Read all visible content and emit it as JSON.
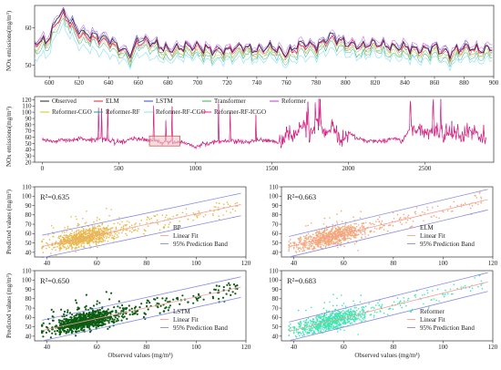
{
  "colors": {
    "Observed": "#222222",
    "ELM": "#e02020",
    "LSTM": "#2a4bd7",
    "Transformer": "#2fb84a",
    "Reformer": "#b43ad6",
    "Reformer-CGO": "#d8c21a",
    "Reformer-RF": "#0aa3a3",
    "Reformer-RF-CGO": "#8fe0ef",
    "Reformer-RF-ICGO": "#ff1493",
    "BP_pts": "#e8b84a",
    "ELM_pts": "#f4a87a",
    "LSTM_pts": "#0b5d12",
    "Reformer_pts": "#3ee6b0",
    "fit": "#f4a0a0",
    "band": "#8a8ae6"
  },
  "chart_data": [
    {
      "type": "line",
      "ylabel": "NOx emissions(mg/m³)",
      "xlim": [
        590,
        900
      ],
      "ylim": [
        47,
        66
      ],
      "xticks": [
        600,
        620,
        640,
        660,
        680,
        700,
        720,
        740,
        760,
        780,
        800,
        820,
        840,
        860,
        880,
        900
      ],
      "yticks": [
        50,
        60
      ],
      "x": [
        590,
        600,
        605,
        610,
        620,
        630,
        640,
        650,
        655,
        660,
        670,
        680,
        690,
        700,
        710,
        720,
        730,
        740,
        750,
        760,
        770,
        780,
        790,
        800,
        810,
        820,
        830,
        840,
        850,
        860,
        870,
        880,
        890,
        900
      ],
      "series": [
        {
          "name": "Observed",
          "values": [
            56,
            57,
            63,
            64,
            59,
            58,
            57,
            54,
            53,
            57,
            56,
            54,
            55,
            55,
            54,
            54,
            55,
            54,
            55,
            53,
            56,
            55,
            58,
            56,
            55,
            56,
            55,
            55,
            54,
            55,
            53,
            55,
            54,
            55
          ]
        },
        {
          "name": "Reformer-RF-ICGO",
          "values": [
            56,
            57,
            62,
            63,
            58,
            57,
            56,
            54,
            53,
            56,
            56,
            54,
            55,
            55,
            54,
            54,
            55,
            54,
            55,
            53,
            55,
            55,
            57,
            56,
            55,
            56,
            55,
            55,
            54,
            55,
            53,
            55,
            54,
            55
          ]
        },
        {
          "name": "Reformer-RF-CGO",
          "values": [
            52,
            53,
            59,
            60,
            55,
            54,
            53,
            51,
            50,
            53,
            52,
            51,
            52,
            52,
            51,
            51,
            52,
            51,
            52,
            50,
            52,
            52,
            54,
            53,
            52,
            53,
            52,
            52,
            51,
            52,
            50,
            52,
            51,
            52
          ]
        }
      ]
    },
    {
      "type": "line",
      "ylabel": "NOx emissions(mg/m³)",
      "xlim": [
        -50,
        2950
      ],
      "ylim": [
        20,
        125
      ],
      "xticks": [
        0,
        500,
        1000,
        1500,
        2000,
        2500
      ],
      "yticks": [
        20,
        30,
        40,
        50,
        60,
        70,
        80,
        90,
        100,
        110,
        120
      ],
      "legend": [
        "Observed",
        "ELM",
        "LSTM",
        "Transformer",
        "Reformer",
        "Reformer-CGO",
        "Reformer-RF",
        "Reformer-RF-CGO",
        "Reformer-RF-ICGO"
      ],
      "x": [
        0,
        100,
        200,
        250,
        300,
        400,
        500,
        600,
        700,
        800,
        900,
        1000,
        1100,
        1200,
        1300,
        1400,
        1500,
        1550,
        1600,
        1650,
        1700,
        1750,
        1800,
        1850,
        1900,
        1950,
        2000,
        2100,
        2200,
        2300,
        2350,
        2400,
        2450,
        2500,
        2600,
        2700,
        2800,
        2900
      ],
      "values": [
        55,
        54,
        56,
        58,
        55,
        57,
        52,
        58,
        55,
        52,
        53,
        45,
        53,
        54,
        52,
        55,
        54,
        52,
        70,
        62,
        80,
        60,
        85,
        65,
        75,
        58,
        66,
        55,
        54,
        58,
        52,
        72,
        78,
        68,
        72,
        62,
        70,
        60
      ],
      "inset_box_x": [
        700,
        900
      ]
    },
    {
      "type": "scatter",
      "model": "BP",
      "r2": "R²=0.635",
      "xlabel": "",
      "ylabel": "Predicted values (mg/m³)",
      "xlim": [
        35,
        120
      ],
      "ylim": [
        35,
        110
      ],
      "xticks": [
        40,
        60,
        80,
        100,
        120
      ],
      "yticks": [
        40,
        50,
        60,
        70,
        80,
        90,
        100,
        110
      ],
      "fit": {
        "slope": 0.56,
        "intercept": 25
      },
      "band_halfwidth": 12,
      "legend": [
        "BP",
        "Linear Fit",
        "95% Prediction Band"
      ]
    },
    {
      "type": "scatter",
      "model": "ELM",
      "r2": "R²=0.663",
      "xlabel": "",
      "ylabel": "",
      "xlim": [
        35,
        120
      ],
      "ylim": [
        35,
        110
      ],
      "xticks": [
        40,
        60,
        80,
        100,
        120
      ],
      "yticks": [
        40,
        50,
        60,
        70,
        80,
        90,
        100,
        110
      ],
      "fit": {
        "slope": 0.63,
        "intercept": 22
      },
      "band_halfwidth": 11,
      "legend": [
        "ELM",
        "Linear Fit",
        "95% Prediction Band"
      ]
    },
    {
      "type": "scatter",
      "model": "LSTM",
      "r2": "R²=0.650",
      "xlabel": "Observed values (mg/m³)",
      "ylabel": "Predicted values (mg/m³)",
      "xlim": [
        35,
        120
      ],
      "ylim": [
        35,
        110
      ],
      "xticks": [
        40,
        60,
        80,
        100,
        120
      ],
      "yticks": [
        40,
        50,
        60,
        70,
        80,
        90,
        100,
        110
      ],
      "fit": {
        "slope": 0.58,
        "intercept": 24
      },
      "band_halfwidth": 11,
      "legend": [
        "LSTM",
        "Linear Fit",
        "95% Prediction Band"
      ]
    },
    {
      "type": "scatter",
      "model": "Reformer",
      "r2": "R²=0.683",
      "xlabel": "Observed values (mg/m³)",
      "ylabel": "",
      "xlim": [
        35,
        120
      ],
      "ylim": [
        35,
        110
      ],
      "xticks": [
        40,
        60,
        80,
        100,
        120
      ],
      "yticks": [
        40,
        50,
        60,
        70,
        80,
        90,
        100,
        110
      ],
      "fit": {
        "slope": 0.66,
        "intercept": 20
      },
      "band_halfwidth": 10,
      "legend": [
        "Reformer",
        "Linear Fit",
        "95% Prediction Band"
      ]
    }
  ]
}
